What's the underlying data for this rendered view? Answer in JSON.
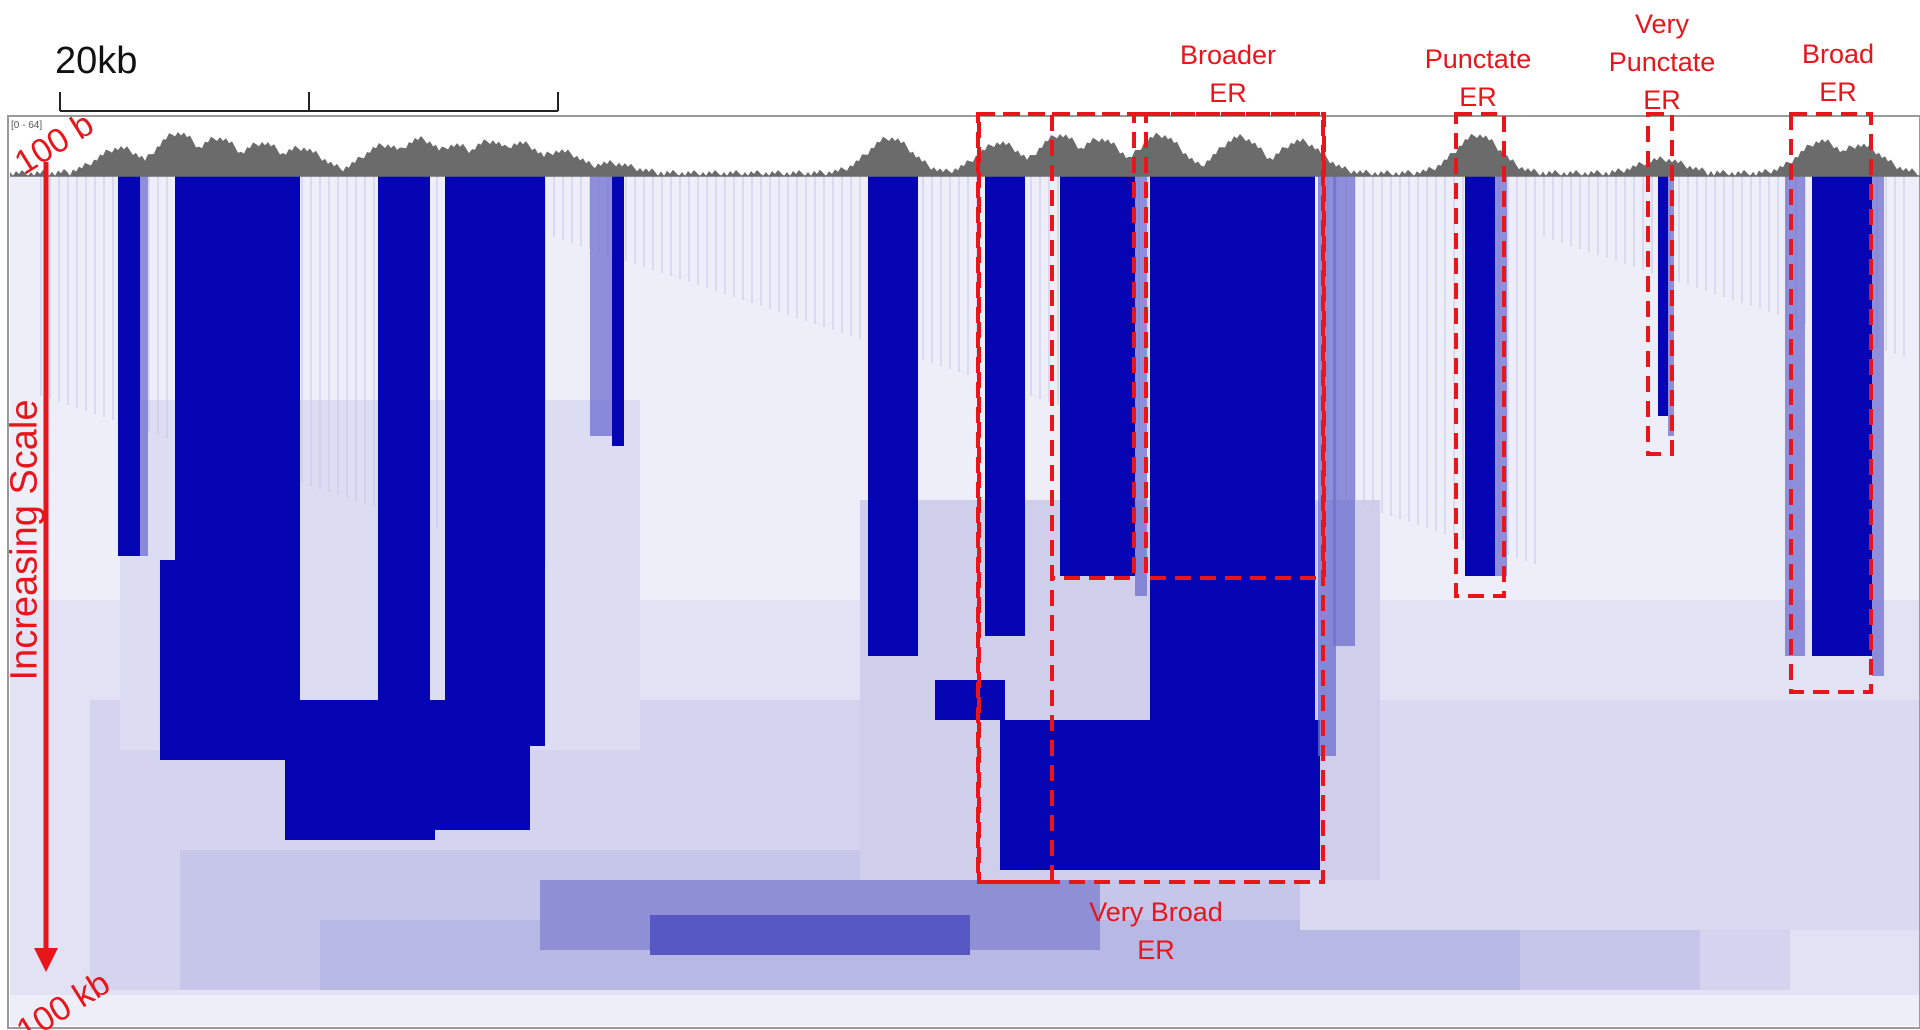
{
  "scale_bar": {
    "label": "20kb"
  },
  "track": {
    "range_label": "[0 - 64]"
  },
  "axis": {
    "title": "Increasing Scale",
    "top_label": "100 b",
    "bottom_label": "100 kb"
  },
  "colors": {
    "annotation": "#e8151b",
    "signal": "#6b6b6b",
    "heat_strong": "#0505b4"
  },
  "regions": [
    {
      "label": "Very Broad\nER",
      "category": "very-broad"
    },
    {
      "label": "Broader\nER",
      "category": "broader"
    },
    {
      "label": "Punctate\nER",
      "category": "punctate"
    },
    {
      "label": "Very\nPunctate\nER",
      "category": "very-punctate"
    },
    {
      "label": "Broad\nER",
      "category": "broad"
    }
  ]
}
